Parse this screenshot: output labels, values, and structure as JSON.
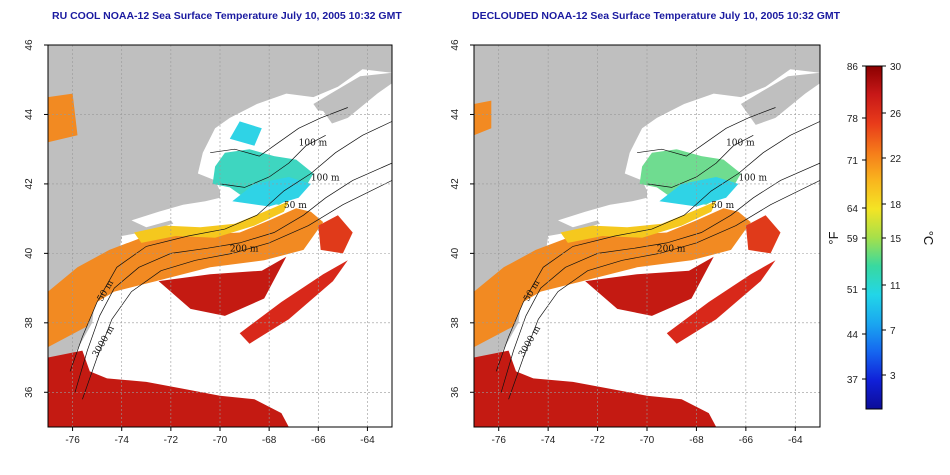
{
  "panels": [
    {
      "id": "left",
      "title": "RU COOL NOAA-12 Sea Surface Temperature July 10, 2005 10:32 GMT",
      "clouds": true
    },
    {
      "id": "right",
      "title": "DECLOUDED NOAA-12 Sea Surface Temperature July 10, 2005 10:32 GMT",
      "clouds": false
    }
  ],
  "axes": {
    "x_ticks": [
      "-76",
      "-74",
      "-72",
      "-70",
      "-68",
      "-66",
      "-64"
    ],
    "y_ticks": [
      "36",
      "38",
      "40",
      "42",
      "44",
      "46"
    ],
    "lon_range": [
      -77,
      -63
    ],
    "lat_range": [
      35,
      46
    ]
  },
  "contour_labels": [
    "100 m",
    "100 m",
    "50 m",
    "200 m",
    "50 m",
    "3000 m"
  ],
  "colorbar": {
    "fahrenheit_ticks": [
      "86",
      "78",
      "71",
      "64",
      "59",
      "51",
      "44",
      "37"
    ],
    "celsius_ticks": [
      "30",
      "26",
      "22",
      "18",
      "15",
      "11",
      "7",
      "3"
    ],
    "unit_f": "°F",
    "unit_c": "°C",
    "colors": [
      "#8b0000",
      "#c81818",
      "#e83b1a",
      "#f57a1a",
      "#f9b51e",
      "#f4e424",
      "#a6e04a",
      "#38d9a0",
      "#22d6e8",
      "#1aa7f0",
      "#1566f0",
      "#1020d8",
      "#0c0c98"
    ]
  },
  "colors": {
    "land": "#bfbfbf",
    "title": "#1a1aa0",
    "grid": "#999999"
  }
}
